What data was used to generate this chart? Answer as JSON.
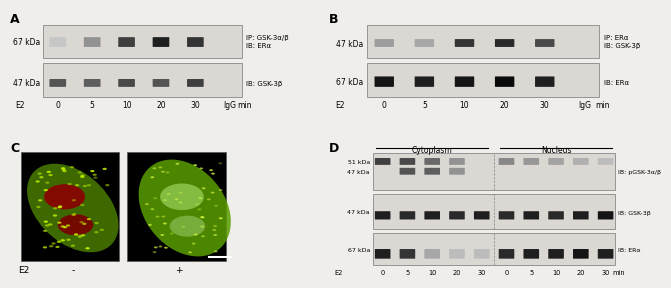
{
  "bg_color": "#f0eeeb",
  "panel_bg": "#f0eeeb",
  "panel_A": {
    "label": "A",
    "blot_bg": "#e8e6e2",
    "row1_label_left": "67 kDa",
    "row2_label_left": "47 kDa",
    "row1_label_right": "IP: GSK-3α/β\nIB: ERα",
    "row2_label_right": "IB: GSK-3β",
    "x_labels": [
      "0",
      "5",
      "10",
      "20",
      "30",
      "IgG",
      "min"
    ],
    "x_label_E2": "E2",
    "row1_bands": [
      0.05,
      0.3,
      0.7,
      0.85,
      0.75,
      0.0
    ],
    "row2_bands": [
      0.6,
      0.55,
      0.65,
      0.6,
      0.7,
      0.0
    ]
  },
  "panel_B": {
    "label": "B",
    "row1_label_left": "47 kDa",
    "row2_label_left": "67 kDa",
    "row1_label_right": "IP: ERα\nIB: GSK-3β",
    "row2_label_right": "IB: ERα",
    "x_labels": [
      "0",
      "5",
      "10",
      "20",
      "30",
      "IgG",
      "min"
    ],
    "x_label_E2": "E2",
    "row1_bands": [
      0.25,
      0.2,
      0.75,
      0.8,
      0.65,
      0.0
    ],
    "row2_bands": [
      0.9,
      0.85,
      0.9,
      0.95,
      0.85,
      0.0
    ]
  },
  "panel_C": {
    "label": "C",
    "x_labels": [
      "-",
      "+"
    ],
    "x_label_E2": "E2"
  },
  "panel_D": {
    "label": "D",
    "cytoplasm_label": "Cytoplasm",
    "nucleus_label": "Nucleus",
    "row1_label_left1": "51 kDa",
    "row1_label_left2": "47 kDa",
    "row2_label_left": "47 kDa",
    "row3_label_left": "67 kDa",
    "row1_label_right": "IB: pGSK-3α/β",
    "row2_label_right": "IB: GSK-3β",
    "row3_label_right": "IB: ERα",
    "x_labels": [
      "0",
      "5",
      "10",
      "20",
      "30",
      "0",
      "5",
      "10",
      "20",
      "30",
      "min"
    ],
    "x_label_E2": "E2",
    "cyto_cols": 5,
    "nuc_cols": 5,
    "row1_cyto_bands": [
      0.7,
      0.7,
      0.55,
      0.35,
      0.0,
      0.0,
      0.0,
      0.0,
      0.0,
      0.0
    ],
    "row1_nuc_bands": [
      0.0,
      0.0,
      0.0,
      0.0,
      0.0,
      0.3,
      0.25,
      0.2,
      0.15,
      0.1
    ],
    "row1_cyto_bands_lower": [
      0.0,
      0.55,
      0.5,
      0.35,
      0.0,
      0.0,
      0.0,
      0.0,
      0.0,
      0.0
    ],
    "row2_bands": [
      0.85,
      0.8,
      0.85,
      0.8,
      0.85,
      0.8,
      0.85,
      0.8,
      0.85,
      0.9
    ],
    "row3_bands": [
      0.85,
      0.75,
      0.2,
      0.1,
      0.1,
      0.8,
      0.85,
      0.85,
      0.9,
      0.85
    ]
  }
}
